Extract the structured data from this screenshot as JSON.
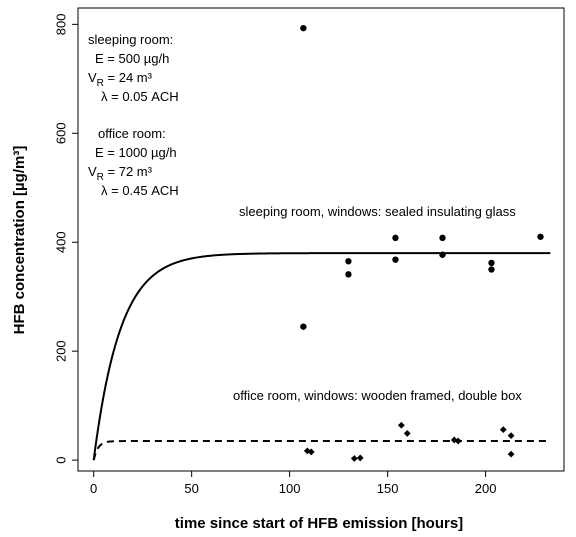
{
  "chart_data": {
    "type": "scatter",
    "title": "",
    "xlabel": "time since start of HFB emission [hours]",
    "ylabel": "HFB concentration [µg/m³]",
    "xlim": [
      -8,
      240
    ],
    "ylim": [
      -20,
      830
    ],
    "xticks": [
      0,
      50,
      100,
      150,
      200
    ],
    "yticks": [
      0,
      200,
      400,
      600,
      800
    ],
    "grid": false,
    "legend": "none",
    "series": [
      {
        "style": "solid-line-with-round-markers",
        "curve_plateau": 380,
        "curve_rate_per_hour": 0.0733,
        "curve_x_end": 233,
        "points": [
          {
            "x": 107,
            "y": 793
          },
          {
            "x": 107,
            "y": 245
          },
          {
            "x": 130,
            "y": 365
          },
          {
            "x": 130,
            "y": 341
          },
          {
            "x": 154,
            "y": 408
          },
          {
            "x": 154,
            "y": 368
          },
          {
            "x": 178,
            "y": 408
          },
          {
            "x": 178,
            "y": 377
          },
          {
            "x": 203,
            "y": 362
          },
          {
            "x": 203,
            "y": 350
          },
          {
            "x": 228,
            "y": 410
          }
        ]
      },
      {
        "style": "dashed-line-with-diamond-markers",
        "curve_plateau": 35,
        "curve_rate_per_hour": 0.45,
        "curve_x_end": 233,
        "points": [
          {
            "x": 109,
            "y": 17
          },
          {
            "x": 111,
            "y": 15
          },
          {
            "x": 133,
            "y": 3
          },
          {
            "x": 136,
            "y": 4
          },
          {
            "x": 157,
            "y": 64
          },
          {
            "x": 160,
            "y": 49
          },
          {
            "x": 184,
            "y": 37
          },
          {
            "x": 186,
            "y": 35
          },
          {
            "x": 209,
            "y": 56
          },
          {
            "x": 213,
            "y": 45
          },
          {
            "x": 213,
            "y": 11
          }
        ]
      }
    ],
    "annotations": {
      "sleeping_block": [
        "sleeping room:",
        "E = 500 µg/h",
        "V",
        "R",
        " = 24 m³",
        "λ = 0.05 ACH"
      ],
      "office_block": [
        "office room:",
        "E = 1000 µg/h",
        "V",
        "R",
        " = 72 m³",
        "λ = 0.45 ACH"
      ],
      "sleeping_curve_label": "sleeping room, windows: sealed insulating glass",
      "office_curve_label": "office room, windows: wooden framed, double box"
    }
  }
}
